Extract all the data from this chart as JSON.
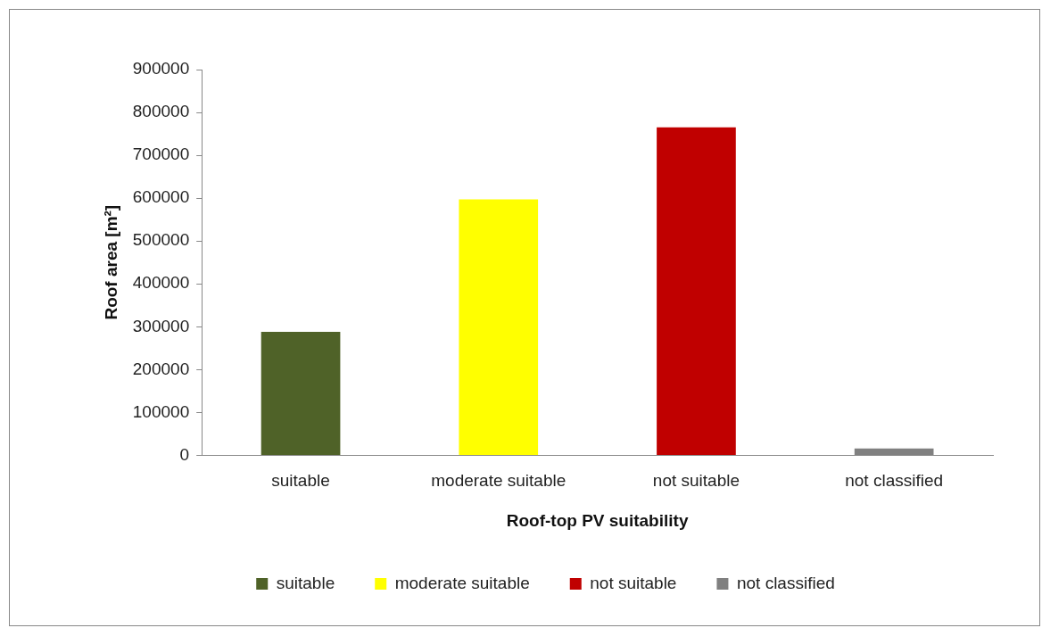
{
  "chart_data": {
    "type": "bar",
    "xlabel": "Roof-top PV suitability",
    "ylabel": "Roof area [m²]",
    "categories": [
      "suitable",
      "moderate suitable",
      "not suitable",
      "not classified"
    ],
    "series": [
      {
        "name": "suitable",
        "color": "#4f6228",
        "values": [
          288000,
          null,
          null,
          null
        ]
      },
      {
        "name": "moderate suitable",
        "color": "#ffff00",
        "values": [
          null,
          597000,
          null,
          null
        ]
      },
      {
        "name": "not suitable",
        "color": "#c00000",
        "values": [
          null,
          null,
          765000,
          null
        ]
      },
      {
        "name": "not classified",
        "color": "#808080",
        "values": [
          null,
          null,
          null,
          16000
        ]
      }
    ],
    "ylim": [
      0,
      900000
    ],
    "yticks": [
      0,
      100000,
      200000,
      300000,
      400000,
      500000,
      600000,
      700000,
      800000,
      900000
    ],
    "grid": false,
    "legend": "bottom"
  }
}
